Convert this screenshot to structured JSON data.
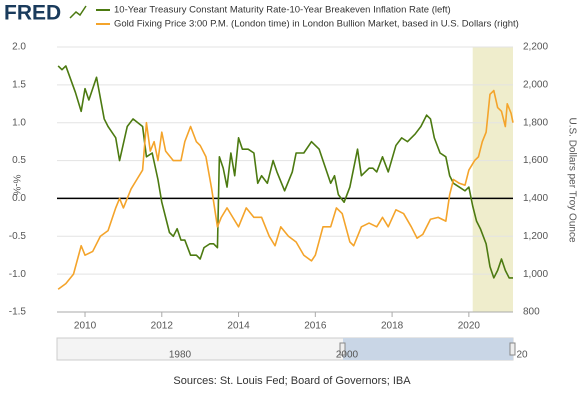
{
  "chart_data": {
    "type": "line",
    "logo": "FRED",
    "source": "Sources: St. Louis Fed; Board of Governors; IBA",
    "ylabel": "%-%",
    "y2label": "U.S. Dollars per Troy Ounce",
    "xlim": [
      2009.27,
      2021.15
    ],
    "xticks": [
      2010,
      2012,
      2014,
      2016,
      2018,
      2020
    ],
    "ylim": [
      -1.5,
      2
    ],
    "yticks": [
      {
        "value": 2,
        "label": "2.0"
      },
      1.5,
      {
        "value": 1,
        "label": "1.0"
      },
      0.5,
      {
        "value": 0,
        "label": "0.0"
      },
      -0.5,
      {
        "value": -1,
        "label": "-1.0"
      },
      -1.5
    ],
    "y2lim": [
      800,
      2200
    ],
    "y2ticks": [
      {
        "value": 2200,
        "label": "2,200"
      },
      {
        "value": 2000,
        "label": "2,000"
      },
      {
        "value": 1800,
        "label": "1,800"
      },
      {
        "value": 1600,
        "label": "1,600"
      },
      {
        "value": 1400,
        "label": "1,400"
      },
      {
        "value": 1200,
        "label": "1,200"
      },
      {
        "value": 1000,
        "label": "1,000"
      },
      800
    ],
    "shaded_range": [
      2020.1,
      2021.15
    ],
    "navigator_labels": [
      "1980",
      "2000",
      "20"
    ],
    "series": [
      {
        "name": "10-Year Treasury Constant Maturity Rate-10-Year Breakeven Inflation Rate (left)",
        "color": "#4c7a11",
        "x": [
          2009.3,
          2009.4,
          2009.5,
          2009.75,
          2009.9,
          2010.0,
          2010.1,
          2010.3,
          2010.5,
          2010.6,
          2010.8,
          2010.9,
          2011.1,
          2011.25,
          2011.5,
          2011.6,
          2011.75,
          2011.9,
          2012.0,
          2012.2,
          2012.3,
          2012.4,
          2012.5,
          2012.6,
          2012.75,
          2012.9,
          2013.0,
          2013.1,
          2013.25,
          2013.35,
          2013.45,
          2013.5,
          2013.6,
          2013.7,
          2013.8,
          2013.9,
          2014.0,
          2014.1,
          2014.25,
          2014.4,
          2014.5,
          2014.6,
          2014.75,
          2014.9,
          2015.0,
          2015.2,
          2015.4,
          2015.5,
          2015.7,
          2015.9,
          2016.1,
          2016.2,
          2016.4,
          2016.5,
          2016.6,
          2016.75,
          2016.9,
          2017.1,
          2017.2,
          2017.4,
          2017.5,
          2017.6,
          2017.75,
          2017.9,
          2018.1,
          2018.25,
          2018.4,
          2018.6,
          2018.75,
          2018.9,
          2019.0,
          2019.1,
          2019.25,
          2019.4,
          2019.5,
          2019.6,
          2019.75,
          2019.9,
          2020.0,
          2020.1,
          2020.2,
          2020.3,
          2020.45,
          2020.55,
          2020.65,
          2020.75,
          2020.85,
          2020.95,
          2021.05,
          2021.15
        ],
        "values": [
          1.75,
          1.7,
          1.75,
          1.4,
          1.15,
          1.45,
          1.3,
          1.6,
          1.05,
          0.95,
          0.8,
          0.5,
          0.95,
          1.05,
          0.95,
          0.55,
          0.6,
          0.25,
          -0.05,
          -0.45,
          -0.5,
          -0.4,
          -0.55,
          -0.55,
          -0.75,
          -0.75,
          -0.8,
          -0.65,
          -0.6,
          -0.6,
          -0.65,
          0.55,
          0.4,
          0.15,
          0.6,
          0.3,
          0.8,
          0.65,
          0.65,
          0.6,
          0.2,
          0.3,
          0.2,
          0.5,
          0.35,
          0.1,
          0.35,
          0.6,
          0.6,
          0.75,
          0.65,
          0.5,
          0.2,
          0.3,
          0.05,
          -0.05,
          0.15,
          0.65,
          0.3,
          0.4,
          0.4,
          0.35,
          0.55,
          0.35,
          0.7,
          0.8,
          0.75,
          0.85,
          0.95,
          1.1,
          1.05,
          0.8,
          0.6,
          0.55,
          0.3,
          0.2,
          0.15,
          0.1,
          0.15,
          -0.1,
          -0.3,
          -0.4,
          -0.6,
          -0.9,
          -1.05,
          -0.95,
          -0.8,
          -0.95,
          -1.05,
          -1.05
        ]
      },
      {
        "name": "Gold Fixing Price 3:00 P.M. (London time) in London Bullion Market, based in U.S. Dollars (right)",
        "color": "#f4a42b",
        "axis": "y2",
        "x": [
          2009.3,
          2009.5,
          2009.7,
          2009.9,
          2010.0,
          2010.2,
          2010.4,
          2010.6,
          2010.8,
          2010.9,
          2011.0,
          2011.2,
          2011.35,
          2011.5,
          2011.6,
          2011.7,
          2011.8,
          2011.9,
          2012.0,
          2012.1,
          2012.3,
          2012.5,
          2012.6,
          2012.75,
          2012.9,
          2013.0,
          2013.15,
          2013.3,
          2013.45,
          2013.55,
          2013.7,
          2013.85,
          2014.0,
          2014.2,
          2014.4,
          2014.6,
          2014.8,
          2014.95,
          2015.1,
          2015.3,
          2015.5,
          2015.7,
          2015.9,
          2016.0,
          2016.2,
          2016.4,
          2016.55,
          2016.7,
          2016.9,
          2017.0,
          2017.2,
          2017.4,
          2017.6,
          2017.75,
          2017.9,
          2018.1,
          2018.3,
          2018.5,
          2018.65,
          2018.8,
          2019.0,
          2019.2,
          2019.4,
          2019.5,
          2019.6,
          2019.75,
          2019.9,
          2020.0,
          2020.15,
          2020.25,
          2020.35,
          2020.45,
          2020.55,
          2020.65,
          2020.75,
          2020.85,
          2020.95,
          2021.0,
          2021.1,
          2021.15
        ],
        "values": [
          920,
          950,
          1000,
          1150,
          1100,
          1120,
          1200,
          1230,
          1350,
          1400,
          1350,
          1450,
          1500,
          1550,
          1800,
          1650,
          1700,
          1600,
          1750,
          1650,
          1600,
          1600,
          1700,
          1780,
          1700,
          1680,
          1620,
          1450,
          1250,
          1300,
          1350,
          1300,
          1250,
          1350,
          1300,
          1300,
          1200,
          1150,
          1250,
          1200,
          1170,
          1100,
          1070,
          1100,
          1250,
          1250,
          1350,
          1320,
          1170,
          1150,
          1250,
          1270,
          1250,
          1300,
          1250,
          1340,
          1320,
          1250,
          1190,
          1210,
          1290,
          1300,
          1280,
          1420,
          1500,
          1480,
          1470,
          1550,
          1600,
          1620,
          1700,
          1750,
          1950,
          1970,
          1880,
          1860,
          1780,
          1900,
          1850,
          1800
        ]
      }
    ]
  }
}
